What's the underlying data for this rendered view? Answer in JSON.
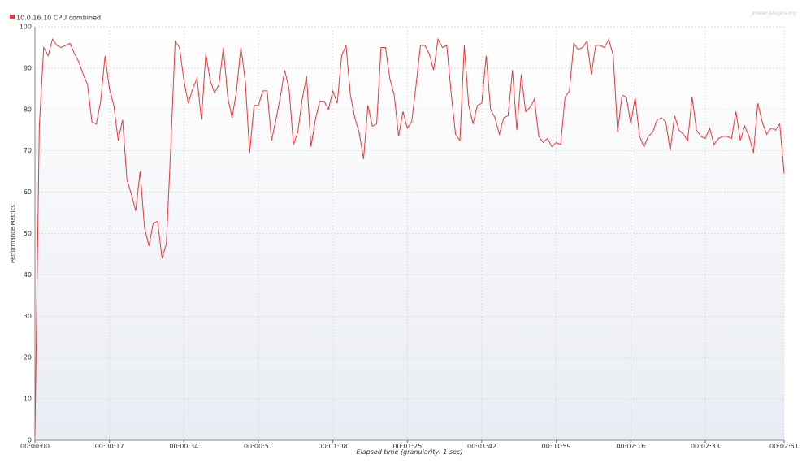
{
  "chart_data": {
    "type": "line",
    "legend_label": "10.0.16.10 CPU combined",
    "watermark": "jmeter-plugins.org",
    "ylabel": "Performance Metrics",
    "xlabel": "Elapsed time (granularity: 1 sec)",
    "grid": true,
    "xlim": [
      0,
      171
    ],
    "ylim": [
      0,
      100
    ],
    "xticks": [
      {
        "value": 0,
        "label": "00:00:00"
      },
      {
        "value": 17,
        "label": "00:00:17"
      },
      {
        "value": 34,
        "label": "00:00:34"
      },
      {
        "value": 51,
        "label": "00:00:51"
      },
      {
        "value": 68,
        "label": "00:01:08"
      },
      {
        "value": 85,
        "label": "00:01:25"
      },
      {
        "value": 102,
        "label": "00:01:42"
      },
      {
        "value": 119,
        "label": "00:01:59"
      },
      {
        "value": 136,
        "label": "00:02:16"
      },
      {
        "value": 153,
        "label": "00:02:33"
      },
      {
        "value": 171,
        "label": "00:02:51"
      }
    ],
    "yticks": [
      0,
      10,
      20,
      30,
      40,
      50,
      60,
      70,
      80,
      90,
      100
    ],
    "x": [
      0,
      1,
      2,
      3,
      4,
      5,
      6,
      7,
      8,
      9,
      10,
      11,
      12,
      13,
      14,
      15,
      16,
      17,
      18,
      19,
      20,
      21,
      22,
      23,
      24,
      25,
      26,
      27,
      28,
      29,
      30,
      31,
      32,
      33,
      34,
      35,
      36,
      37,
      38,
      39,
      40,
      41,
      42,
      43,
      44,
      45,
      46,
      47,
      48,
      49,
      50,
      51,
      52,
      53,
      54,
      55,
      56,
      57,
      58,
      59,
      60,
      61,
      62,
      63,
      64,
      65,
      66,
      67,
      68,
      69,
      70,
      71,
      72,
      73,
      74,
      75,
      76,
      77,
      78,
      79,
      80,
      81,
      82,
      83,
      84,
      85,
      86,
      87,
      88,
      89,
      90,
      91,
      92,
      93,
      94,
      95,
      96,
      97,
      98,
      99,
      100,
      101,
      102,
      103,
      104,
      105,
      106,
      107,
      108,
      109,
      110,
      111,
      112,
      113,
      114,
      115,
      116,
      117,
      118,
      119,
      120,
      121,
      122,
      123,
      124,
      125,
      126,
      127,
      128,
      129,
      130,
      131,
      132,
      133,
      134,
      135,
      136,
      137,
      138,
      139,
      140,
      141,
      142,
      143,
      144,
      145,
      146,
      147,
      148,
      149,
      150,
      151,
      152,
      153,
      154,
      155,
      156,
      157,
      158,
      159,
      160,
      161,
      162,
      163,
      164,
      165,
      166,
      167,
      168,
      169,
      170,
      171
    ],
    "series": [
      {
        "name": "10.0.16.10 CPU combined",
        "color": "#e8393a",
        "values": [
          1,
          76,
          95,
          93,
          97,
          95.5,
          95,
          95.5,
          96,
          93.5,
          91.5,
          88.5,
          86,
          77,
          76.5,
          82,
          93,
          85,
          81,
          72.5,
          77.5,
          63,
          59.5,
          55.5,
          65,
          51.5,
          47,
          52.5,
          53,
          44,
          47.5,
          71,
          96.5,
          95,
          87,
          81.5,
          85,
          87.5,
          77.5,
          93.5,
          87,
          84,
          86,
          95,
          83,
          78,
          84.5,
          95,
          87,
          69.5,
          81,
          81,
          84.5,
          84.5,
          72.5,
          77.5,
          83,
          89.5,
          85,
          71.5,
          74.5,
          82.5,
          88,
          71,
          77.5,
          82,
          82,
          80,
          84.5,
          81.5,
          93,
          95.5,
          83.5,
          78,
          74.5,
          68,
          81,
          76,
          76.5,
          95,
          95,
          87.5,
          83.5,
          73.5,
          79.5,
          75.5,
          77,
          86,
          95.5,
          95.5,
          93.5,
          89.5,
          97,
          95,
          95.5,
          84,
          74,
          72.5,
          95.5,
          81,
          76.5,
          81,
          81.5,
          93,
          80,
          78,
          74,
          78,
          78.5,
          89.5,
          75,
          88.5,
          79.5,
          80.5,
          82.5,
          73.5,
          72,
          73,
          71,
          72,
          71.5,
          83,
          84.5,
          96,
          94.5,
          95,
          96.5,
          88.5,
          95.5,
          95.5,
          95,
          97,
          93,
          74.5,
          83.5,
          83,
          76.5,
          83,
          73.5,
          71,
          73.5,
          74.5,
          77.5,
          78,
          77,
          70,
          78.5,
          75,
          74,
          72.5,
          83,
          75,
          73.5,
          73,
          75.5,
          71.5,
          73,
          73.5,
          73.5,
          73,
          79.5,
          72.5,
          76,
          73.5,
          69.5,
          81.5,
          77,
          74,
          75.5,
          75,
          76.5,
          64.5
        ]
      }
    ]
  }
}
